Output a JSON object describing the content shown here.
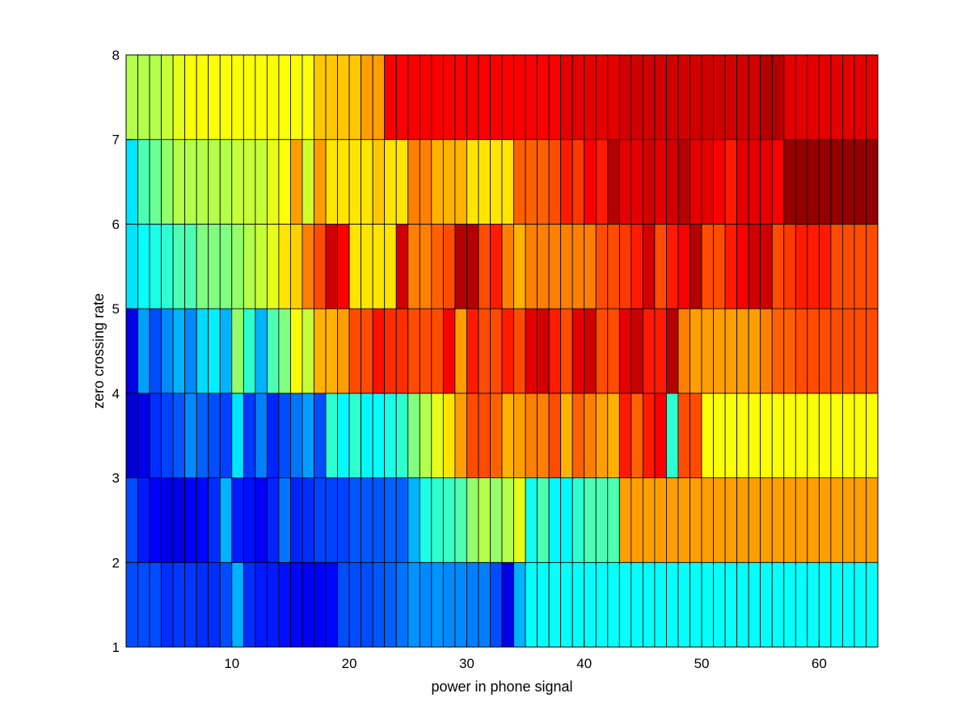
{
  "chart_data": {
    "type": "heatmap",
    "title": "",
    "xlabel": "power in phone signal",
    "ylabel": "zero crossing rate",
    "xlim": [
      1,
      65
    ],
    "ylim": [
      1,
      8
    ],
    "xticks": [
      10,
      20,
      30,
      40,
      50,
      60
    ],
    "yticks": [
      1,
      2,
      3,
      4,
      5,
      6,
      7,
      8
    ],
    "colormap": "jet",
    "color_range": [
      0,
      1
    ],
    "grid_lines": true,
    "cell_edge_color": "#000000",
    "band_values": [
      [
        0.2,
        0.2,
        0.2,
        0.17,
        0.18,
        0.18,
        0.17,
        0.17,
        0.2,
        0.3,
        0.17,
        0.15,
        0.15,
        0.14,
        0.13,
        0.12,
        0.12,
        0.13,
        0.2,
        0.2,
        0.2,
        0.21,
        0.22,
        0.24,
        0.27,
        0.26,
        0.27,
        0.26,
        0.26,
        0.25,
        0.25,
        0.2,
        0.1,
        0.3,
        0.38,
        0.38,
        0.38,
        0.38,
        0.38,
        0.38,
        0.38,
        0.38,
        0.38,
        0.38,
        0.38,
        0.38,
        0.38,
        0.38,
        0.38,
        0.38,
        0.38,
        0.38,
        0.38,
        0.38,
        0.38,
        0.38,
        0.38,
        0.38,
        0.38,
        0.38,
        0.38,
        0.38,
        0.38,
        0.38
      ],
      [
        0.2,
        0.15,
        0.12,
        0.1,
        0.1,
        0.12,
        0.13,
        0.17,
        0.3,
        0.15,
        0.14,
        0.12,
        0.16,
        0.24,
        0.16,
        0.17,
        0.19,
        0.19,
        0.19,
        0.21,
        0.21,
        0.21,
        0.22,
        0.22,
        0.3,
        0.4,
        0.42,
        0.43,
        0.45,
        0.52,
        0.55,
        0.52,
        0.55,
        0.6,
        0.39,
        0.45,
        0.37,
        0.37,
        0.42,
        0.45,
        0.45,
        0.45,
        0.72,
        0.72,
        0.72,
        0.72,
        0.72,
        0.72,
        0.72,
        0.72,
        0.72,
        0.72,
        0.72,
        0.72,
        0.72,
        0.72,
        0.72,
        0.72,
        0.72,
        0.72,
        0.72,
        0.72,
        0.72,
        0.72
      ],
      [
        0.08,
        0.1,
        0.17,
        0.19,
        0.21,
        0.26,
        0.22,
        0.2,
        0.19,
        0.35,
        0.18,
        0.25,
        0.16,
        0.2,
        0.24,
        0.28,
        0.2,
        0.42,
        0.37,
        0.42,
        0.37,
        0.38,
        0.4,
        0.42,
        0.5,
        0.55,
        0.6,
        0.65,
        0.72,
        0.8,
        0.8,
        0.78,
        0.7,
        0.72,
        0.75,
        0.75,
        0.8,
        0.7,
        0.78,
        0.75,
        0.72,
        0.7,
        0.85,
        0.78,
        0.85,
        0.88,
        0.42,
        0.8,
        0.8,
        0.62,
        0.62,
        0.62,
        0.62,
        0.62,
        0.62,
        0.62,
        0.62,
        0.62,
        0.62,
        0.62,
        0.62,
        0.62,
        0.62,
        0.62
      ],
      [
        0.1,
        0.28,
        0.2,
        0.26,
        0.3,
        0.26,
        0.34,
        0.36,
        0.3,
        0.52,
        0.42,
        0.3,
        0.45,
        0.5,
        0.62,
        0.57,
        0.7,
        0.7,
        0.72,
        0.8,
        0.8,
        0.86,
        0.83,
        0.83,
        0.8,
        0.8,
        0.8,
        0.88,
        0.72,
        0.85,
        0.8,
        0.8,
        0.85,
        0.8,
        0.9,
        0.92,
        0.85,
        0.8,
        0.9,
        0.92,
        0.8,
        0.8,
        0.9,
        0.93,
        0.85,
        0.85,
        0.95,
        0.75,
        0.72,
        0.72,
        0.72,
        0.72,
        0.72,
        0.72,
        0.75,
        0.78,
        0.78,
        0.8,
        0.8,
        0.8,
        0.8,
        0.8,
        0.8,
        0.8
      ],
      [
        0.35,
        0.38,
        0.4,
        0.42,
        0.45,
        0.45,
        0.5,
        0.5,
        0.5,
        0.52,
        0.55,
        0.57,
        0.6,
        0.65,
        0.67,
        0.75,
        0.8,
        0.92,
        0.88,
        0.65,
        0.65,
        0.65,
        0.65,
        0.92,
        0.75,
        0.75,
        0.78,
        0.8,
        0.95,
        0.95,
        0.8,
        0.85,
        0.75,
        0.7,
        0.75,
        0.75,
        0.75,
        0.75,
        0.75,
        0.75,
        0.8,
        0.8,
        0.82,
        0.85,
        0.92,
        0.8,
        0.85,
        0.88,
        0.95,
        0.8,
        0.8,
        0.85,
        0.88,
        0.92,
        0.92,
        0.8,
        0.82,
        0.85,
        0.85,
        0.85,
        0.8,
        0.8,
        0.8,
        0.8
      ],
      [
        0.35,
        0.45,
        0.48,
        0.52,
        0.55,
        0.55,
        0.55,
        0.55,
        0.55,
        0.57,
        0.57,
        0.57,
        0.6,
        0.62,
        0.72,
        0.58,
        0.72,
        0.65,
        0.65,
        0.65,
        0.65,
        0.68,
        0.65,
        0.65,
        0.75,
        0.75,
        0.7,
        0.7,
        0.7,
        0.65,
        0.65,
        0.65,
        0.65,
        0.78,
        0.78,
        0.78,
        0.8,
        0.85,
        0.82,
        0.88,
        0.85,
        0.95,
        0.9,
        0.9,
        0.92,
        0.9,
        0.92,
        0.95,
        0.9,
        0.9,
        0.88,
        0.85,
        0.9,
        0.9,
        0.9,
        0.88,
        0.98,
        0.98,
        0.98,
        0.98,
        0.98,
        0.98,
        0.98,
        0.98
      ],
      [
        0.55,
        0.55,
        0.55,
        0.57,
        0.6,
        0.62,
        0.62,
        0.62,
        0.62,
        0.62,
        0.62,
        0.62,
        0.62,
        0.62,
        0.62,
        0.62,
        0.68,
        0.68,
        0.68,
        0.68,
        0.72,
        0.72,
        0.88,
        0.88,
        0.88,
        0.88,
        0.88,
        0.88,
        0.88,
        0.88,
        0.88,
        0.88,
        0.88,
        0.88,
        0.88,
        0.88,
        0.88,
        0.9,
        0.9,
        0.9,
        0.9,
        0.9,
        0.92,
        0.92,
        0.92,
        0.92,
        0.92,
        0.92,
        0.92,
        0.92,
        0.92,
        0.92,
        0.92,
        0.92,
        0.95,
        0.95,
        0.9,
        0.9,
        0.9,
        0.9,
        0.9,
        0.9,
        0.9,
        0.9
      ]
    ]
  }
}
